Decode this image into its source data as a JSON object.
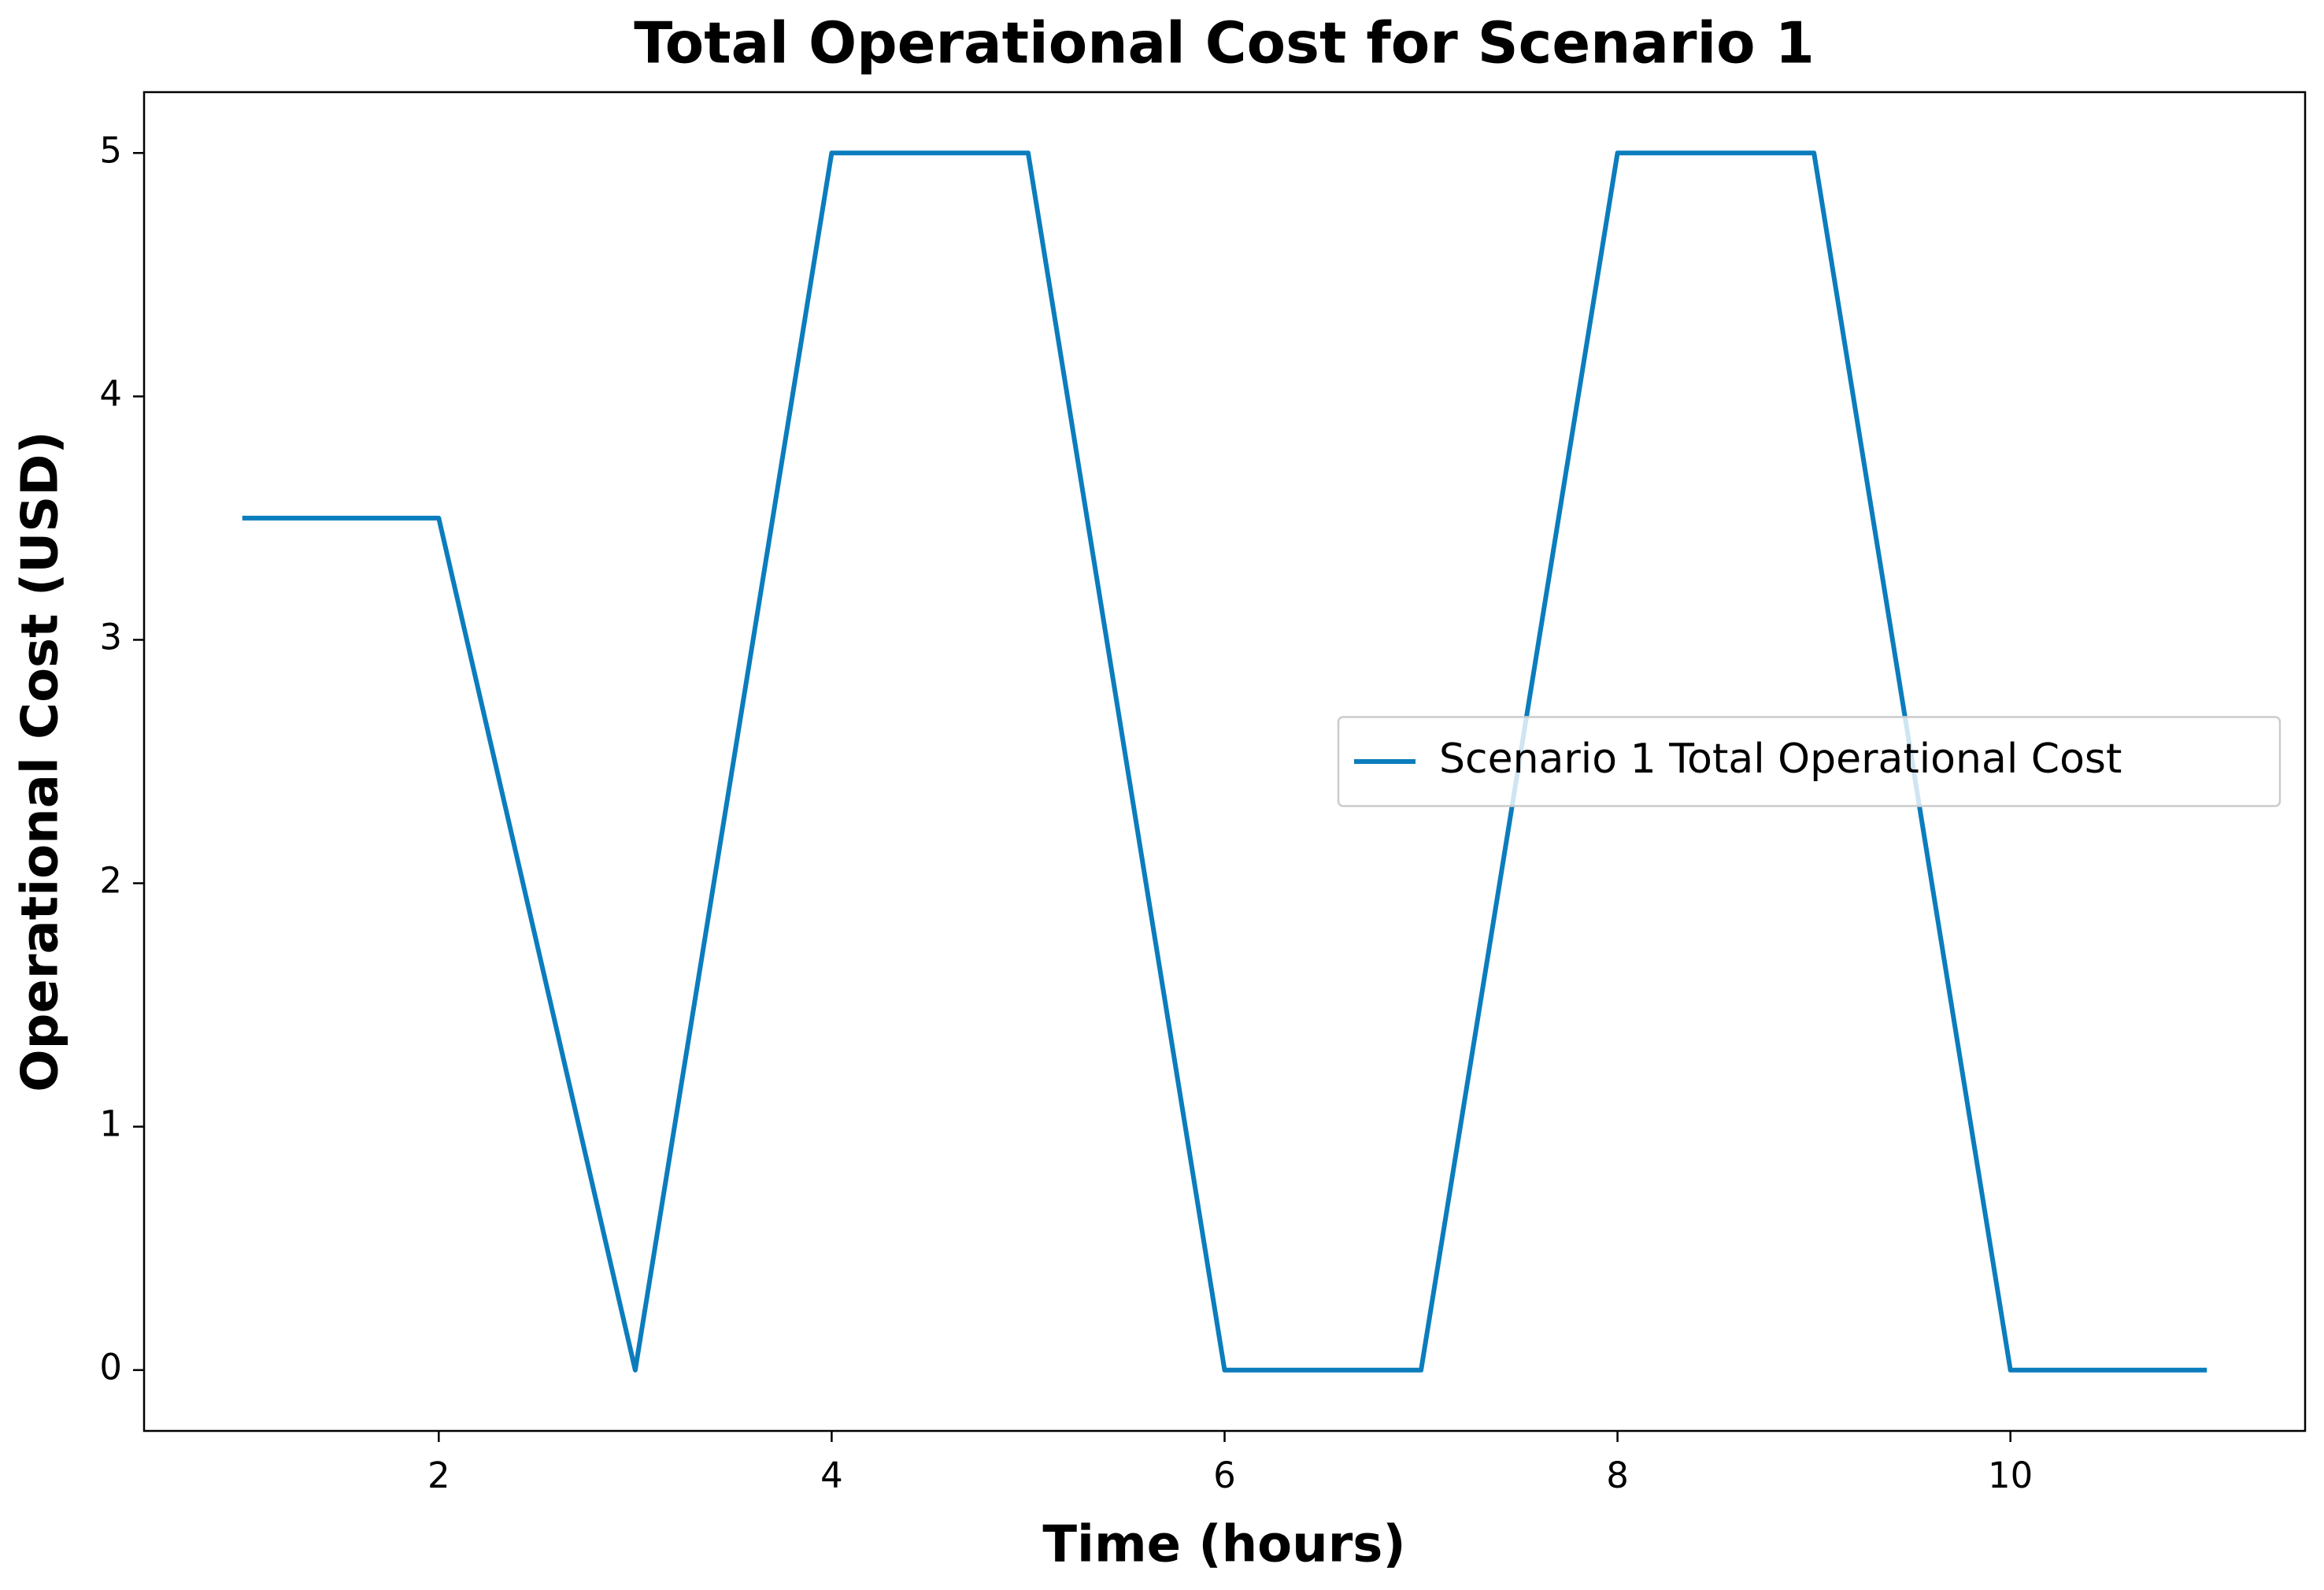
{
  "chart_data": {
    "type": "line",
    "title": "Total Operational Cost for Scenario 1",
    "x_label": "Time (hours)",
    "y_label": "Operational Cost (USD)",
    "x": [
      1,
      2,
      3,
      4,
      5,
      6,
      7,
      8,
      9,
      10,
      11
    ],
    "series": [
      {
        "name": "Scenario 1 Total Operational Cost",
        "color": "#0b7dbd",
        "values": [
          3.5,
          3.5,
          0,
          5,
          5,
          0,
          0,
          5,
          5,
          0,
          0
        ]
      }
    ],
    "xlim": [
      0.5,
      11.5
    ],
    "ylim": [
      -0.25,
      5.25
    ],
    "xticks": [
      2,
      4,
      6,
      8,
      10
    ],
    "yticks": [
      0,
      1,
      2,
      3,
      4,
      5
    ],
    "grid": false,
    "legend": "center right"
  }
}
